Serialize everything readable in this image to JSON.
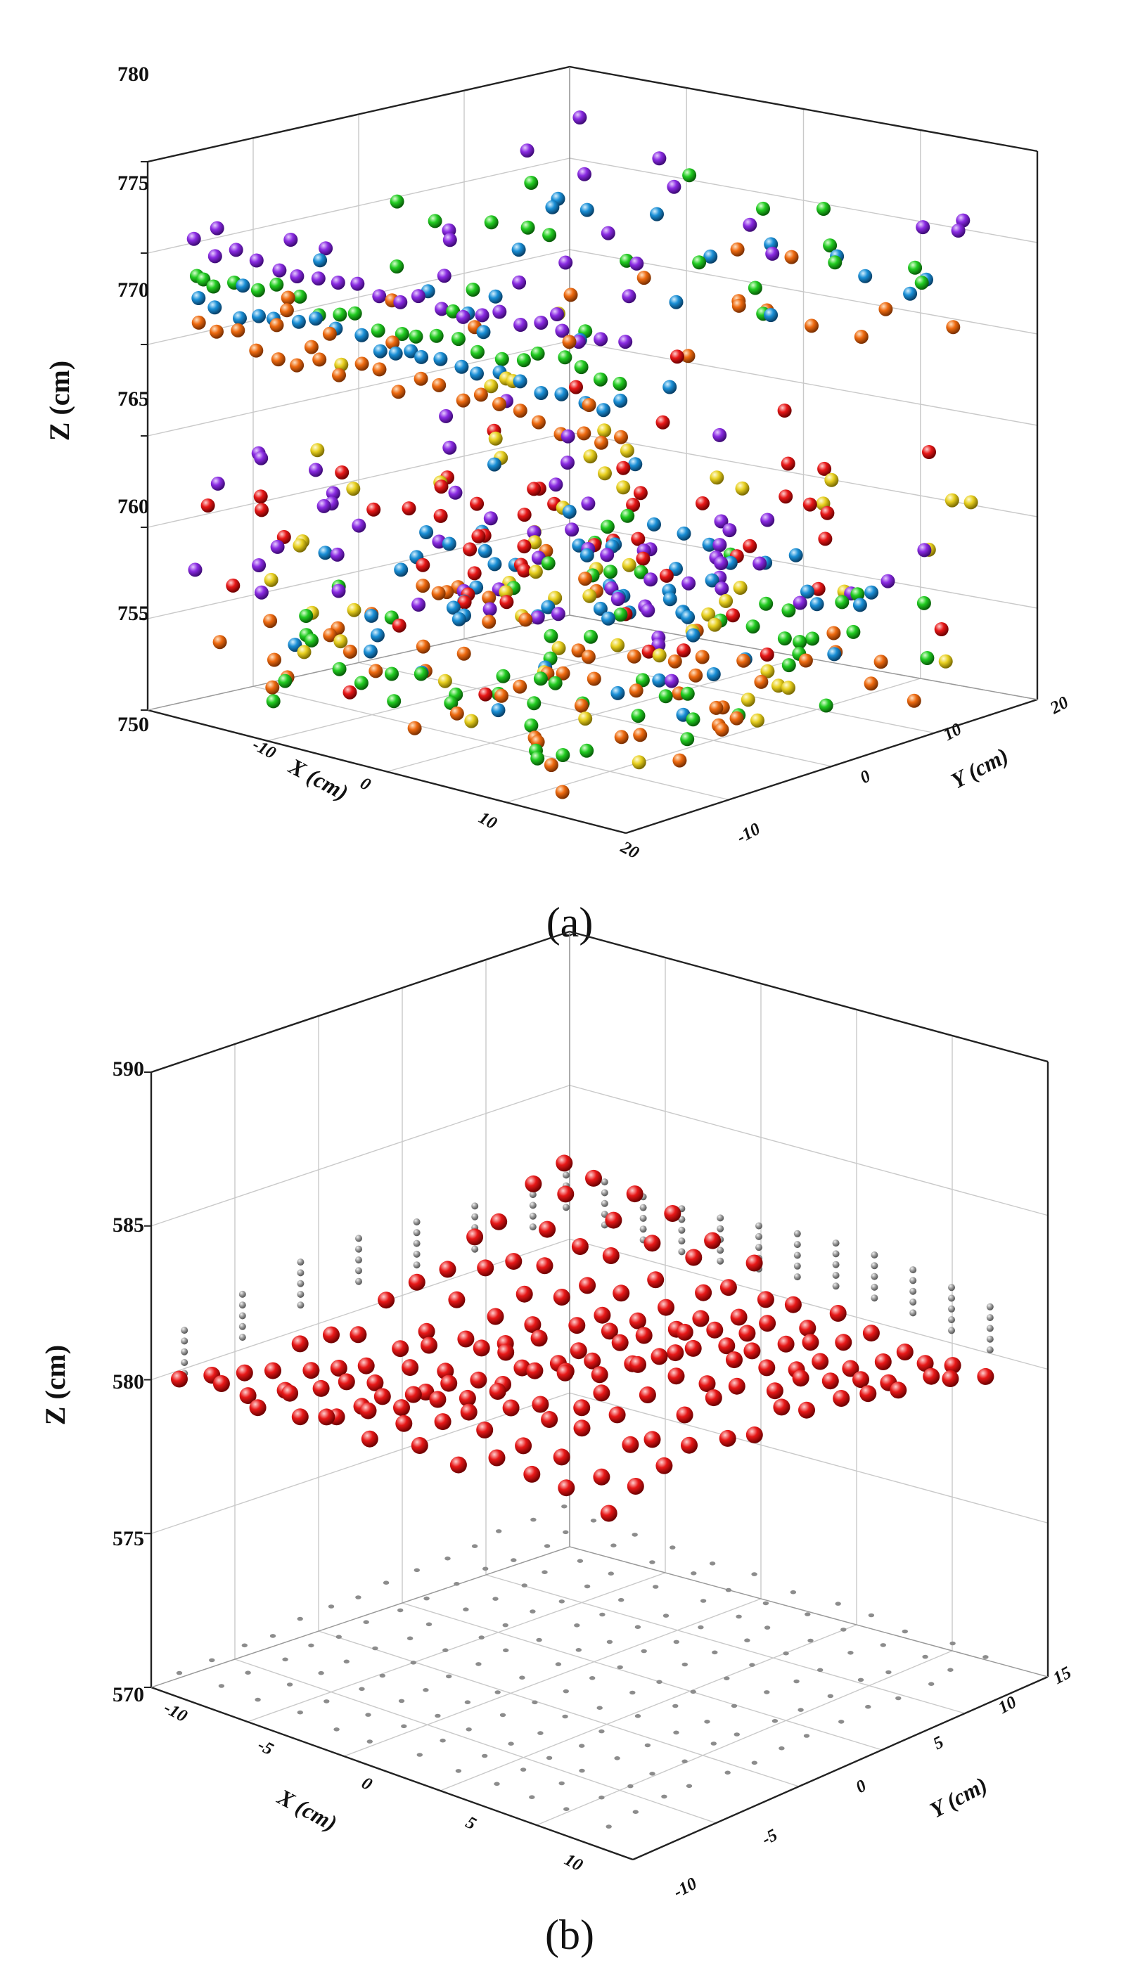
{
  "chart_data": [
    {
      "type": "scatter",
      "panel_label": "(a)",
      "xlabel": "X (cm)",
      "ylabel": "Y (cm)",
      "zlabel": "Z (cm)",
      "xlim": [
        -20,
        20
      ],
      "ylim": [
        -20,
        20
      ],
      "zlim": [
        750,
        780
      ],
      "z_ticks": [
        "780",
        "775",
        "770",
        "765",
        "760",
        "755",
        "750"
      ],
      "x_ticks": [
        "-10",
        "0",
        "10",
        "20"
      ],
      "y_ticks": [
        "-10",
        "0",
        "10",
        "20"
      ],
      "grid": true,
      "series": [
        {
          "name": "layer-purple-top",
          "color": "#8a2be2",
          "z": 776.0,
          "kind": "layer"
        },
        {
          "name": "layer-green-top",
          "color": "#22cc22",
          "z": 774.3,
          "kind": "layer"
        },
        {
          "name": "layer-blue-top",
          "color": "#1a8fd6",
          "z": 773.0,
          "kind": "layer"
        },
        {
          "name": "layer-orange-top",
          "color": "#ee6a10",
          "z": 771.2,
          "kind": "layer"
        },
        {
          "name": "block-yellow",
          "color": "#e8d020",
          "z": [
            751,
            767
          ],
          "kind": "block"
        },
        {
          "name": "block-red",
          "color": "#e81818",
          "z": [
            752,
            765
          ],
          "kind": "block"
        },
        {
          "name": "block-purple",
          "color": "#8a2be2",
          "z": [
            755,
            763
          ],
          "kind": "block"
        },
        {
          "name": "block-blue",
          "color": "#1a8fd6",
          "z": [
            754,
            759
          ],
          "kind": "block"
        },
        {
          "name": "block-green",
          "color": "#22cc22",
          "z": [
            751,
            756
          ],
          "kind": "block"
        },
        {
          "name": "block-orange",
          "color": "#ee6a10",
          "z": [
            750,
            754
          ],
          "kind": "block"
        }
      ]
    },
    {
      "type": "scatter",
      "panel_label": "(b)",
      "xlabel": "X (cm)",
      "ylabel": "Y (cm)",
      "zlabel": "Z (cm)",
      "xlim": [
        -10,
        15
      ],
      "ylim": [
        -10,
        15
      ],
      "zlim": [
        570,
        590
      ],
      "z_ticks": [
        "590",
        "585",
        "580",
        "575",
        "570"
      ],
      "x_ticks": [
        "-10",
        "-5",
        "0",
        "5",
        "10"
      ],
      "y_ticks": [
        "-10",
        "-5",
        "0",
        "5",
        "10",
        "15"
      ],
      "grid": true,
      "series": [
        {
          "name": "surface-points",
          "color": "#e01010",
          "z_mean": 580.0,
          "z_amplitude": 1.4,
          "kind": "surface"
        },
        {
          "name": "wall-projection",
          "color": "#999999",
          "z_mean": 580.6,
          "kind": "projection"
        },
        {
          "name": "floor-projection",
          "color": "#8c8c8c",
          "z": 570,
          "kind": "projection"
        }
      ]
    }
  ]
}
